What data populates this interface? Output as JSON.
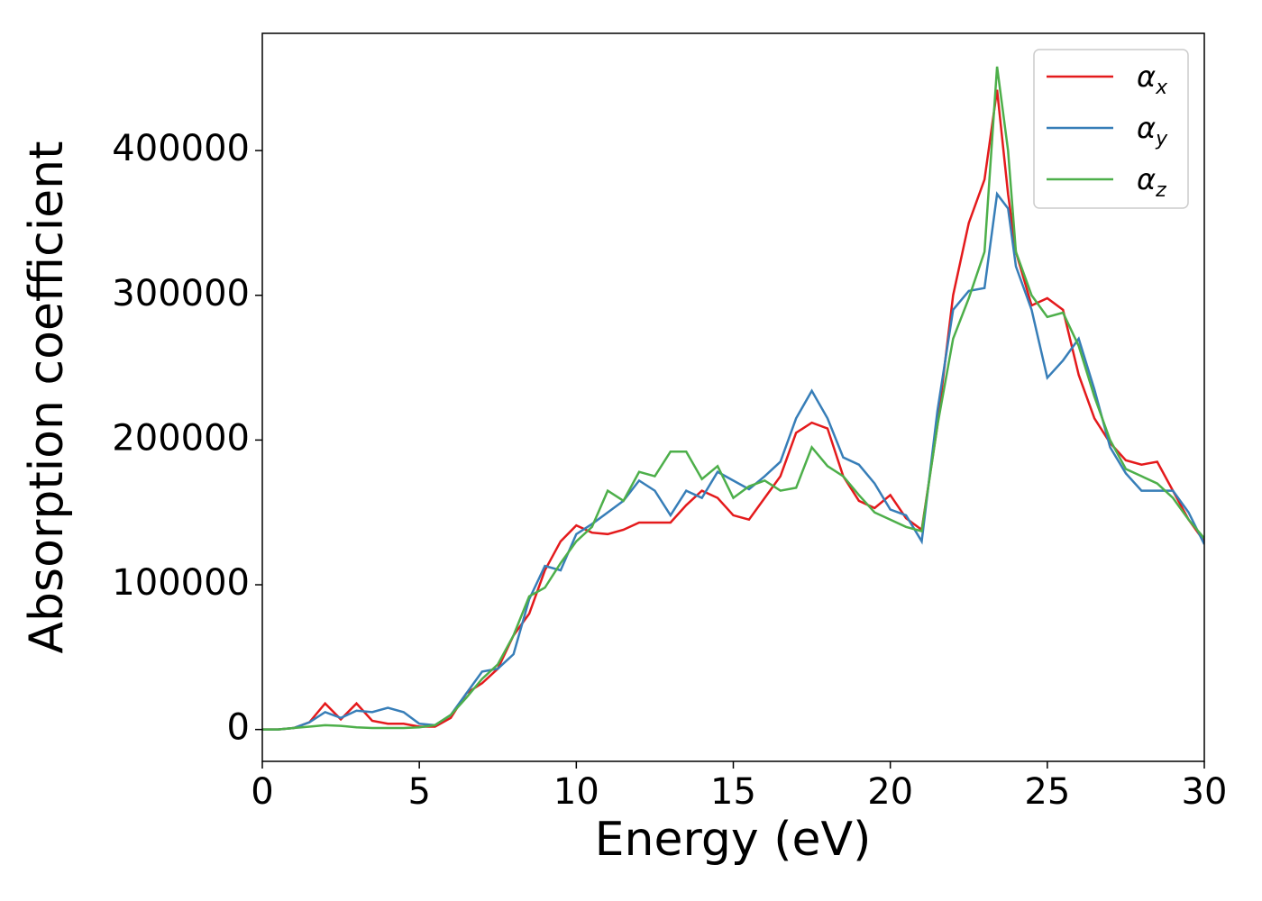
{
  "chart_data": {
    "type": "line",
    "x_label": "Energy (eV)",
    "y_label": "Absorption coefficient",
    "x": [
      0,
      0.5,
      1,
      1.5,
      2,
      2.5,
      3,
      3.5,
      4,
      4.5,
      5,
      5.5,
      6,
      6.5,
      7,
      7.5,
      8,
      8.5,
      9,
      9.5,
      10,
      10.5,
      11,
      11.5,
      12,
      12.5,
      13,
      13.5,
      14,
      14.5,
      15,
      15.5,
      16,
      16.5,
      17,
      17.5,
      18,
      18.5,
      19,
      19.5,
      20,
      20.5,
      21,
      21.5,
      22,
      22.5,
      23,
      23.4,
      23.75,
      24,
      24.5,
      25,
      25.5,
      26,
      26.5,
      27,
      27.5,
      28,
      28.5,
      29,
      29.5,
      30
    ],
    "series": [
      {
        "name": "αx",
        "color": "#e41a1c",
        "values": [
          0,
          0,
          1000,
          5000,
          18000,
          7000,
          18000,
          6000,
          4000,
          4000,
          2000,
          2000,
          8000,
          25000,
          32000,
          42000,
          65000,
          80000,
          110000,
          130000,
          141000,
          136000,
          135000,
          138000,
          143000,
          143000,
          143000,
          155000,
          165000,
          160000,
          148000,
          145000,
          160000,
          175000,
          205000,
          212000,
          208000,
          175000,
          158000,
          153000,
          162000,
          146000,
          138000,
          210000,
          300000,
          350000,
          380000,
          442000,
          370000,
          330000,
          293000,
          298000,
          290000,
          245000,
          215000,
          198000,
          186000,
          183000,
          185000,
          165000,
          145000,
          130000
        ]
      },
      {
        "name": "αy",
        "color": "#377eb8",
        "values": [
          0,
          0,
          1000,
          5000,
          12000,
          8000,
          13000,
          12000,
          15000,
          12000,
          4000,
          3000,
          10000,
          25000,
          40000,
          42000,
          52000,
          90000,
          113000,
          110000,
          135000,
          142000,
          150000,
          158000,
          172000,
          165000,
          148000,
          165000,
          160000,
          178000,
          172000,
          166000,
          175000,
          185000,
          215000,
          234000,
          215000,
          188000,
          183000,
          170000,
          152000,
          148000,
          130000,
          220000,
          290000,
          303000,
          305000,
          370000,
          360000,
          320000,
          290000,
          243000,
          255000,
          270000,
          235000,
          195000,
          177000,
          165000,
          165000,
          165000,
          150000,
          128000
        ]
      },
      {
        "name": "αz",
        "color": "#4daf4a",
        "values": [
          0,
          0,
          1000,
          2000,
          3000,
          2500,
          1500,
          1000,
          1000,
          1000,
          1500,
          3000,
          10000,
          22000,
          35000,
          45000,
          65000,
          92000,
          98000,
          115000,
          130000,
          140000,
          165000,
          158000,
          178000,
          175000,
          192000,
          192000,
          173000,
          182000,
          160000,
          168000,
          172000,
          165000,
          167000,
          195000,
          182000,
          175000,
          162000,
          150000,
          145000,
          140000,
          137000,
          210000,
          270000,
          298000,
          330000,
          458000,
          400000,
          330000,
          300000,
          285000,
          288000,
          265000,
          230000,
          200000,
          180000,
          175000,
          170000,
          160000,
          145000,
          132000
        ]
      }
    ],
    "xlim": [
      0,
      30
    ],
    "xticks": [
      0,
      5,
      10,
      15,
      20,
      25,
      30
    ],
    "ylim": [
      -22000,
      481000
    ],
    "yticks": [
      0,
      100000,
      200000,
      300000,
      400000
    ],
    "legend": "upper right"
  }
}
